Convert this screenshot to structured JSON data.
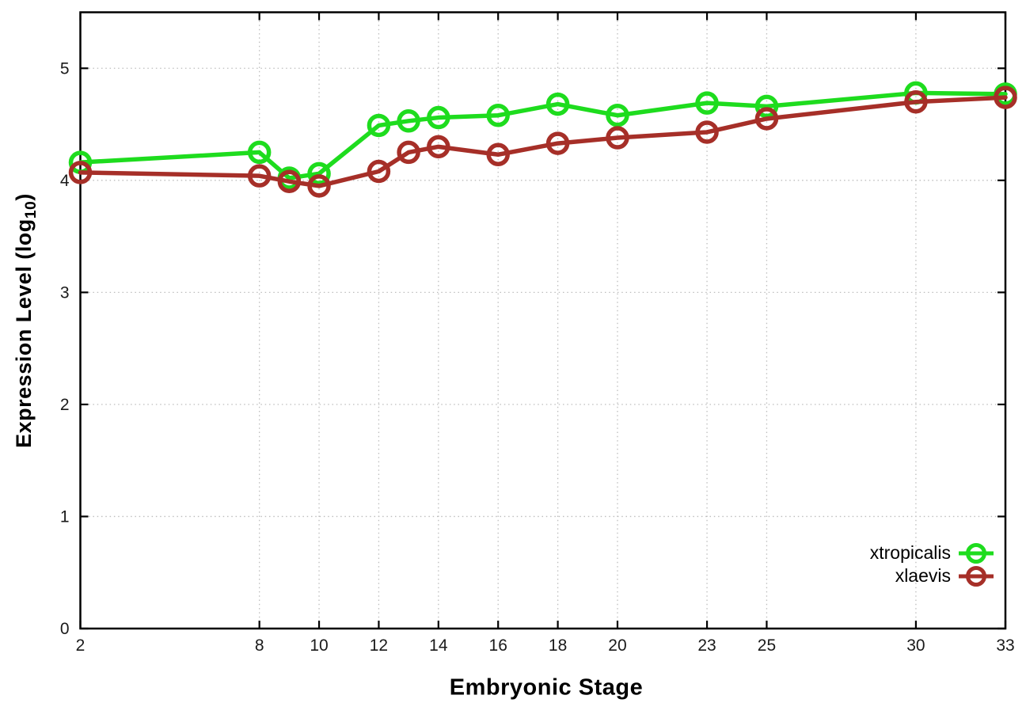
{
  "chart_data": {
    "type": "line",
    "title": "",
    "xlabel": "Embryonic Stage",
    "ylabel_prefix": "Expression Level (log",
    "ylabel_sub": "10",
    "ylabel_suffix": ")",
    "x": [
      2,
      8,
      9,
      10,
      12,
      13,
      14,
      16,
      18,
      20,
      23,
      25,
      30,
      33
    ],
    "series": [
      {
        "name": "xtropicalis",
        "color": "#1edc1e",
        "values": [
          4.16,
          4.25,
          4.02,
          4.06,
          4.49,
          4.53,
          4.56,
          4.58,
          4.68,
          4.58,
          4.69,
          4.66,
          4.78,
          4.77
        ]
      },
      {
        "name": "xlaevis",
        "color": "#a62f28",
        "values": [
          4.07,
          4.04,
          3.99,
          3.95,
          4.08,
          4.25,
          4.3,
          4.23,
          4.33,
          4.38,
          4.43,
          4.55,
          4.7,
          4.74
        ]
      }
    ],
    "xticks": [
      2,
      8,
      10,
      12,
      14,
      16,
      18,
      20,
      23,
      25,
      30,
      33
    ],
    "yticks": [
      0,
      1,
      2,
      3,
      4,
      5
    ],
    "xlim": [
      2,
      33
    ],
    "ylim": [
      0,
      5.5
    ],
    "grid": true,
    "legend_position": "inside bottom right",
    "background_color": "#ffffff",
    "grid_color": "#bdbdbd",
    "border_color": "#000000",
    "tick_label_color": "#1a1a1a"
  }
}
